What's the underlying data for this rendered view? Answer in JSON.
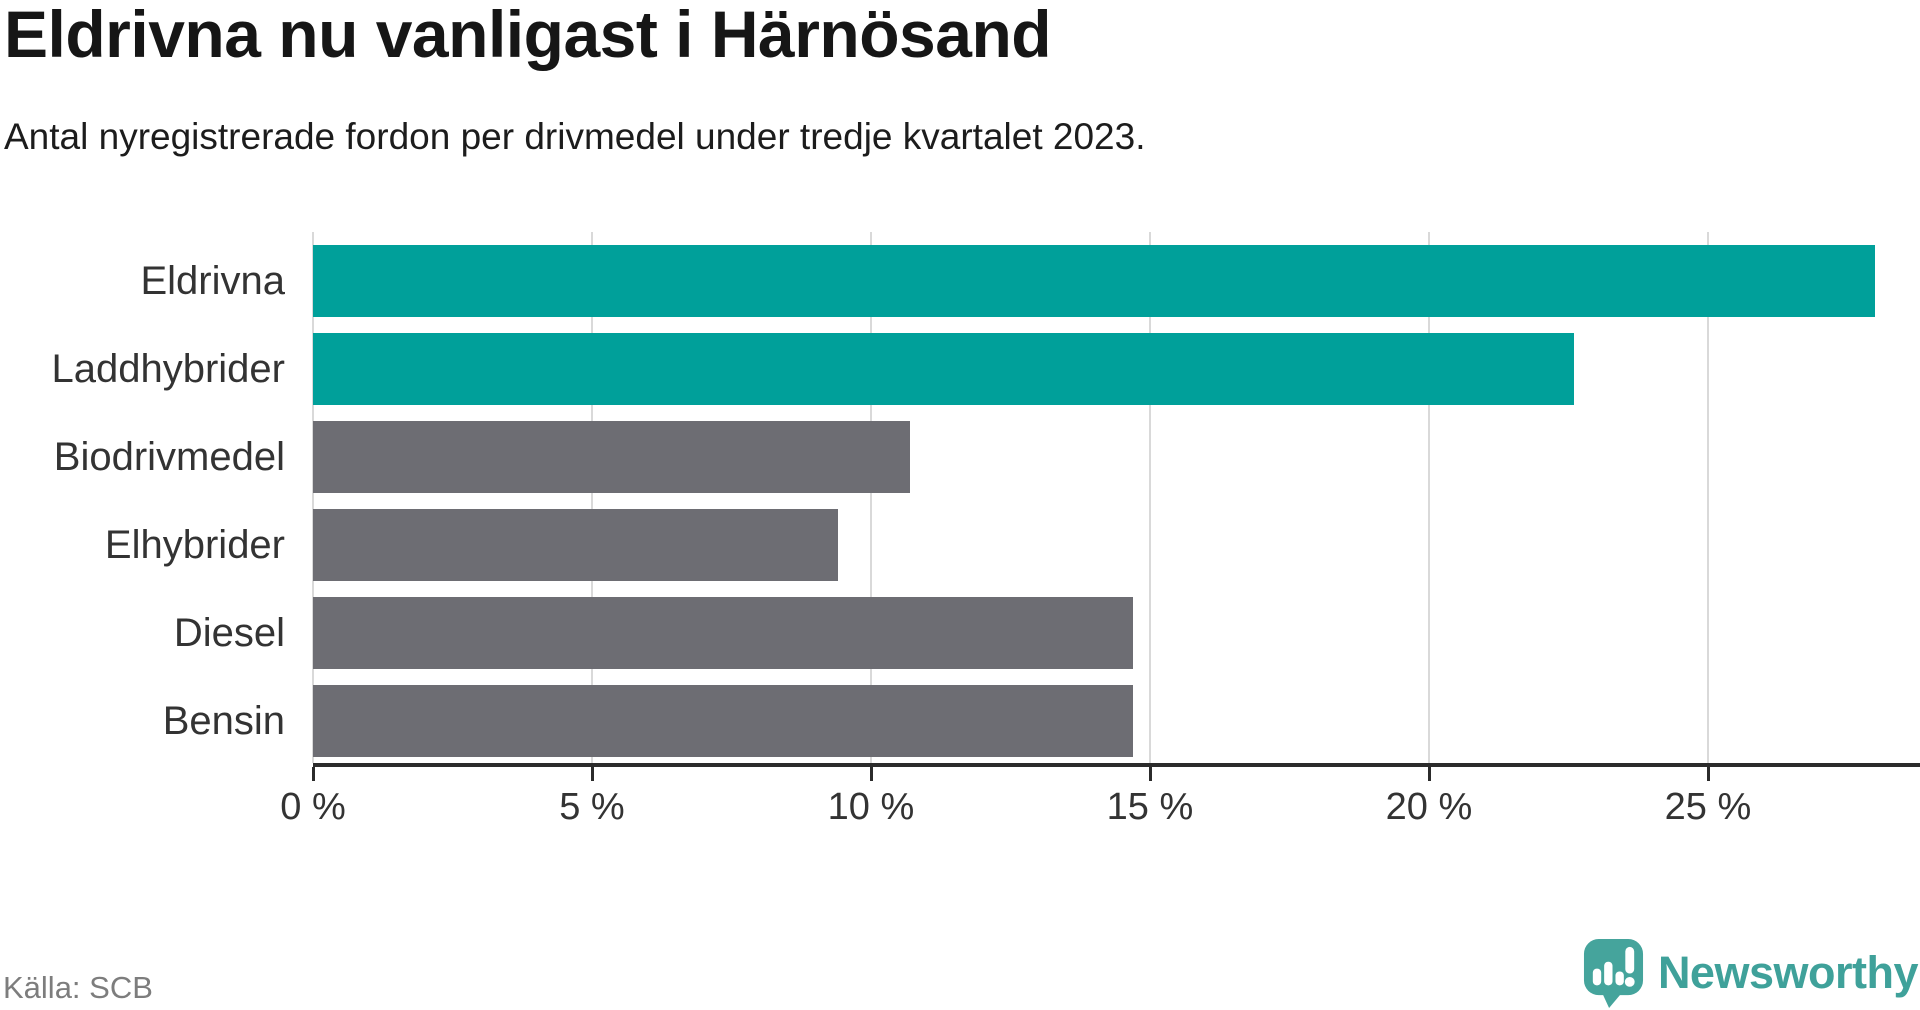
{
  "header": {
    "title": "Eldrivna nu vanligast i Härnösand",
    "subtitle": "Antal nyregistrerade fordon per drivmedel under tredje kvartalet 2023."
  },
  "footer": {
    "source": "Källa: SCB",
    "brand_name": "Newsworthy"
  },
  "colors": {
    "highlight": "#00a09a",
    "default_bar": "#6d6d73",
    "grid": "#d9d9d9",
    "axis": "#2b2b2b",
    "label_text": "#333333",
    "muted_text": "#7d7d7d",
    "brand_teal": "#3fa19a",
    "brand_icon_teal": "#45a49c"
  },
  "chart_data": {
    "type": "bar",
    "orientation": "horizontal",
    "title": "Eldrivna nu vanligast i Härnösand",
    "subtitle": "Antal nyregistrerade fordon per drivmedel under tredje kvartalet 2023.",
    "xlabel": "",
    "ylabel": "",
    "unit": "%",
    "categories": [
      "Eldrivna",
      "Laddhybrider",
      "Biodrivmedel",
      "Elhybrider",
      "Diesel",
      "Bensin"
    ],
    "values": [
      28.0,
      22.6,
      10.7,
      9.4,
      14.7,
      14.7
    ],
    "highlighted": [
      true,
      true,
      false,
      false,
      false,
      false
    ],
    "xlim": [
      0,
      28.8
    ],
    "xticks": [
      0,
      5,
      10,
      15,
      20,
      25
    ],
    "xtick_labels": [
      "0 %",
      "5 %",
      "10 %",
      "15 %",
      "20 %",
      "25 %"
    ],
    "grid": true,
    "legend": "none",
    "source": "Källa: SCB"
  }
}
